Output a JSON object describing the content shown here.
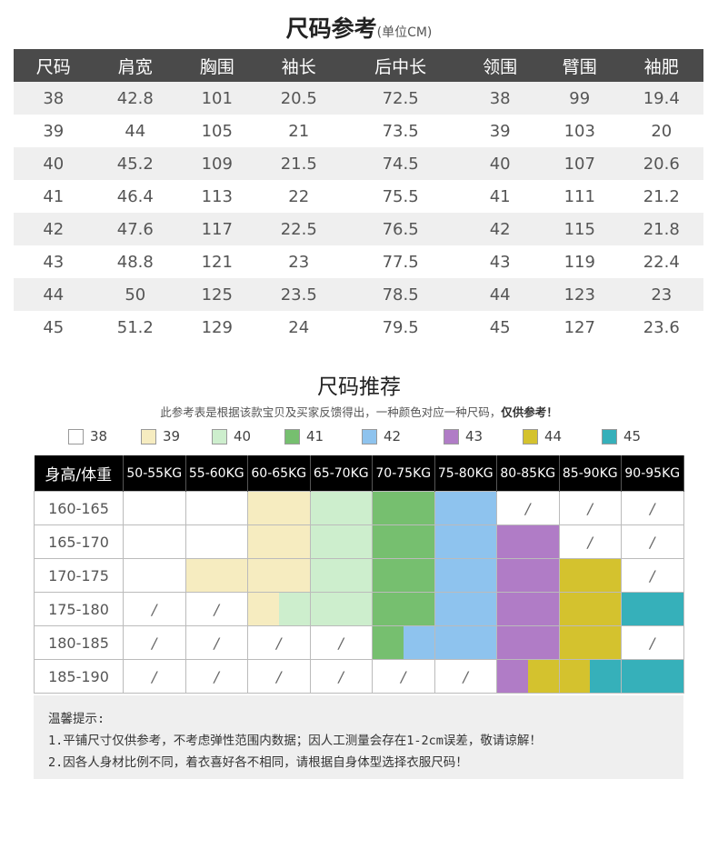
{
  "size_reference": {
    "title": "尺码参考",
    "unit": "(单位CM)",
    "headers": [
      "尺码",
      "肩宽",
      "胸围",
      "袖长",
      "后中长",
      "领围",
      "臂围",
      "袖肥"
    ],
    "rows": [
      [
        "38",
        "42.8",
        "101",
        "20.5",
        "72.5",
        "38",
        "99",
        "19.4"
      ],
      [
        "39",
        "44",
        "105",
        "21",
        "73.5",
        "39",
        "103",
        "20"
      ],
      [
        "40",
        "45.2",
        "109",
        "21.5",
        "74.5",
        "40",
        "107",
        "20.6"
      ],
      [
        "41",
        "46.4",
        "113",
        "22",
        "75.5",
        "41",
        "111",
        "21.2"
      ],
      [
        "42",
        "47.6",
        "117",
        "22.5",
        "76.5",
        "42",
        "115",
        "21.8"
      ],
      [
        "43",
        "48.8",
        "121",
        "23",
        "77.5",
        "43",
        "119",
        "22.4"
      ],
      [
        "44",
        "50",
        "125",
        "23.5",
        "78.5",
        "44",
        "123",
        "23"
      ],
      [
        "45",
        "51.2",
        "129",
        "24",
        "79.5",
        "45",
        "127",
        "23.6"
      ]
    ]
  },
  "size_recommend": {
    "title": "尺码推荐",
    "subtitle": "此参考表是根据该款宝贝及买家反馈得出，一种颜色对应一种尺码，",
    "subtitle_bold": "仅供参考！",
    "legend": [
      {
        "label": "38",
        "color": "#ffffff"
      },
      {
        "label": "39",
        "color": "#f6ecc0"
      },
      {
        "label": "40",
        "color": "#cdeecd"
      },
      {
        "label": "41",
        "color": "#76bf6f"
      },
      {
        "label": "42",
        "color": "#8ec3ee"
      },
      {
        "label": "43",
        "color": "#b07cc6"
      },
      {
        "label": "44",
        "color": "#d4c22e"
      },
      {
        "label": "45",
        "color": "#36b0ba"
      }
    ],
    "corner_header": "身高/体重",
    "weight_headers": [
      "50-55KG",
      "55-60KG",
      "60-65KG",
      "65-70KG",
      "70-75KG",
      "75-80KG",
      "80-85KG",
      "85-90KG",
      "90-95KG"
    ],
    "rows": [
      {
        "height": "160-165",
        "cells": [
          "38",
          "38",
          "39",
          "40",
          "41",
          "42",
          "/",
          "/",
          "/"
        ]
      },
      {
        "height": "165-170",
        "cells": [
          "38",
          "38",
          "39",
          "40",
          "41",
          "42",
          "43",
          "/",
          "/"
        ]
      },
      {
        "height": "170-175",
        "cells": [
          "38",
          "39",
          "39",
          "40",
          "41",
          "42",
          "43",
          "44",
          "/"
        ]
      },
      {
        "height": "175-180",
        "cells": [
          "/",
          "/",
          "39|40",
          "40",
          "41",
          "42",
          "43",
          "44",
          "45"
        ]
      },
      {
        "height": "180-185",
        "cells": [
          "/",
          "/",
          "/",
          "/",
          "41|42",
          "42",
          "43",
          "44",
          "/"
        ]
      },
      {
        "height": "185-190",
        "cells": [
          "/",
          "/",
          "/",
          "/",
          "/",
          "/",
          "43|44",
          "44|45",
          "45"
        ]
      }
    ]
  },
  "tips": {
    "title": "温馨提示:",
    "line1": "1.平铺尺寸仅供参考，不考虑弹性范围内数据；因人工测量会存在1-2cm误差，敬请谅解！",
    "line2": "2.因各人身材比例不同，着衣喜好各不相同，请根据自身体型选择衣服尺码！"
  }
}
